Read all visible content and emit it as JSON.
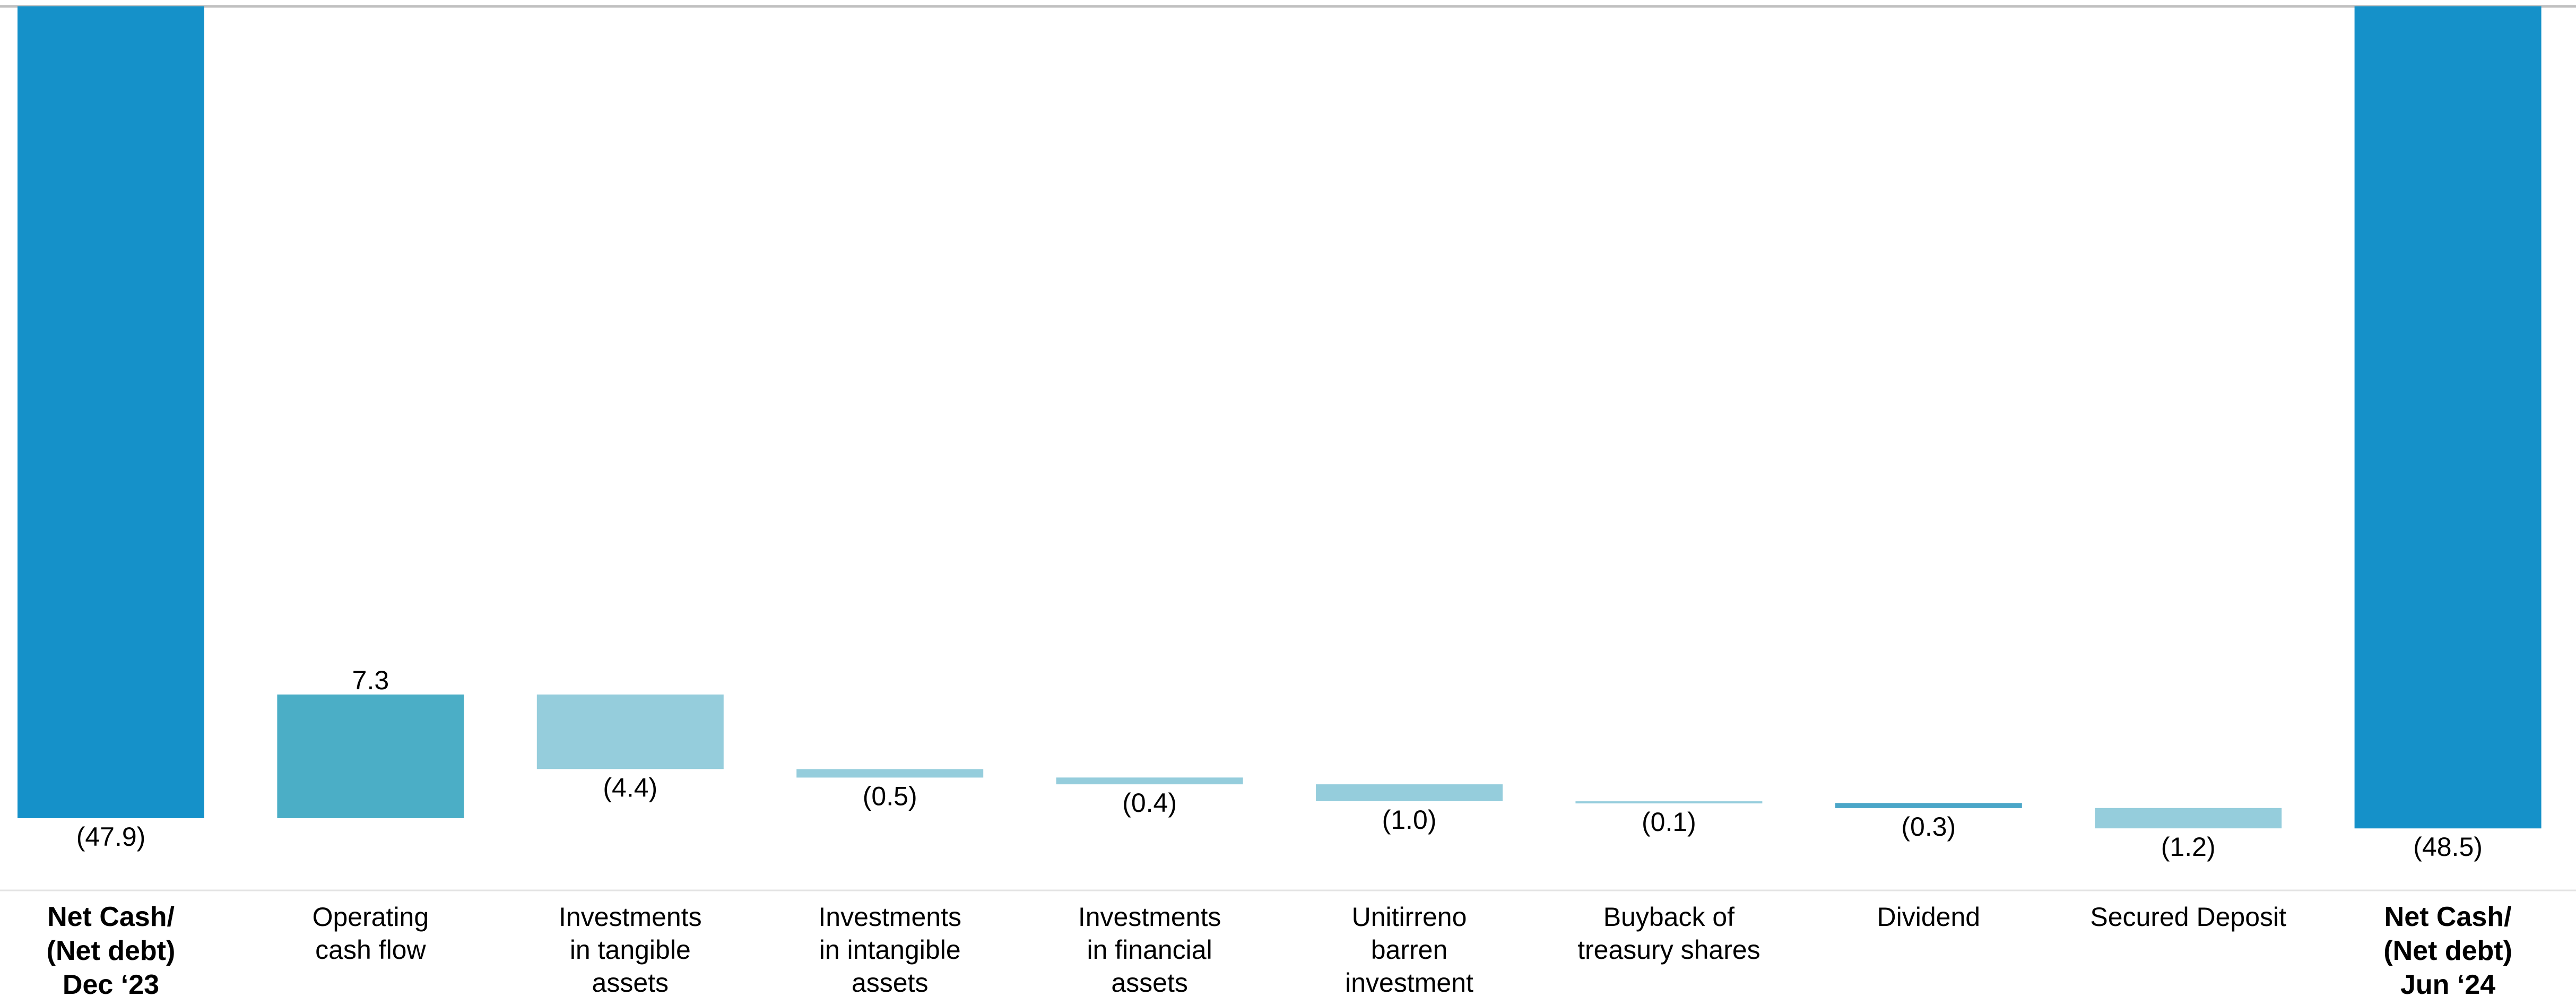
{
  "chart_data": {
    "type": "bar",
    "subtype": "waterfall",
    "title": "",
    "xlabel": "",
    "ylabel": "",
    "grid": false,
    "legend": "none",
    "colors": {
      "total": "#1591C9",
      "increase": "#4BAEC6",
      "decrease": "#95CDDC",
      "dividend": "#4BA6C8",
      "axis_line": "#C0C0C0"
    },
    "categories": [
      {
        "id": "start",
        "lines": [
          "Net Cash/",
          "(Net debt)",
          "Dec ‘23"
        ],
        "bold": true
      },
      {
        "id": "operating",
        "lines": [
          "Operating",
          "cash flow"
        ],
        "bold": false
      },
      {
        "id": "tangible",
        "lines": [
          "Investments",
          "in tangible",
          "assets"
        ],
        "bold": false
      },
      {
        "id": "intangible",
        "lines": [
          "Investments",
          "in intangible",
          "assets"
        ],
        "bold": false
      },
      {
        "id": "financial",
        "lines": [
          "Investments",
          "in financial",
          "assets"
        ],
        "bold": false
      },
      {
        "id": "unitirreno",
        "lines": [
          "Unitirreno",
          "barren",
          "investment"
        ],
        "bold": false
      },
      {
        "id": "buyback",
        "lines": [
          "Buyback of",
          "treasury shares"
        ],
        "bold": false
      },
      {
        "id": "dividend",
        "lines": [
          "Dividend"
        ],
        "bold": false
      },
      {
        "id": "secured",
        "lines": [
          "Secured Deposit"
        ],
        "bold": false
      },
      {
        "id": "end",
        "lines": [
          "Net Cash/",
          "(Net debt)",
          "Jun ‘24"
        ],
        "bold": true
      }
    ],
    "bars": [
      {
        "id": "start",
        "kind": "total",
        "value": -47.9,
        "label": "(47.9)"
      },
      {
        "id": "operating",
        "kind": "increase",
        "value": 7.3,
        "label": "7.3"
      },
      {
        "id": "tangible",
        "kind": "decrease",
        "value": -4.4,
        "label": "(4.4)"
      },
      {
        "id": "intangible",
        "kind": "decrease",
        "value": -0.5,
        "label": "(0.5)"
      },
      {
        "id": "financial",
        "kind": "decrease",
        "value": -0.4,
        "label": "(0.4)"
      },
      {
        "id": "unitirreno",
        "kind": "decrease",
        "value": -1.0,
        "label": "(1.0)"
      },
      {
        "id": "buyback",
        "kind": "decrease",
        "value": -0.1,
        "label": "(0.1)"
      },
      {
        "id": "dividend",
        "kind": "dividend",
        "value": -0.3,
        "label": "(0.3)"
      },
      {
        "id": "secured",
        "kind": "decrease",
        "value": -1.2,
        "label": "(1.2)"
      },
      {
        "id": "end",
        "kind": "total",
        "value": -48.5,
        "label": "(48.5)"
      }
    ]
  }
}
